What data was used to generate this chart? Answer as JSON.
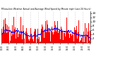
{
  "title": "Milwaukee Weather Actual and Average Wind Speed by Minute mph (Last 24 Hours)",
  "n_points": 144,
  "bar_color": "#ff0000",
  "avg_color": "#0000ff",
  "background_color": "#ffffff",
  "plot_bg_color": "#ffffff",
  "grid_color": "#b0b0b0",
  "ylim": [
    0,
    15
  ],
  "yticks": [
    2,
    4,
    6,
    8,
    10,
    12,
    14
  ],
  "seed": 42
}
